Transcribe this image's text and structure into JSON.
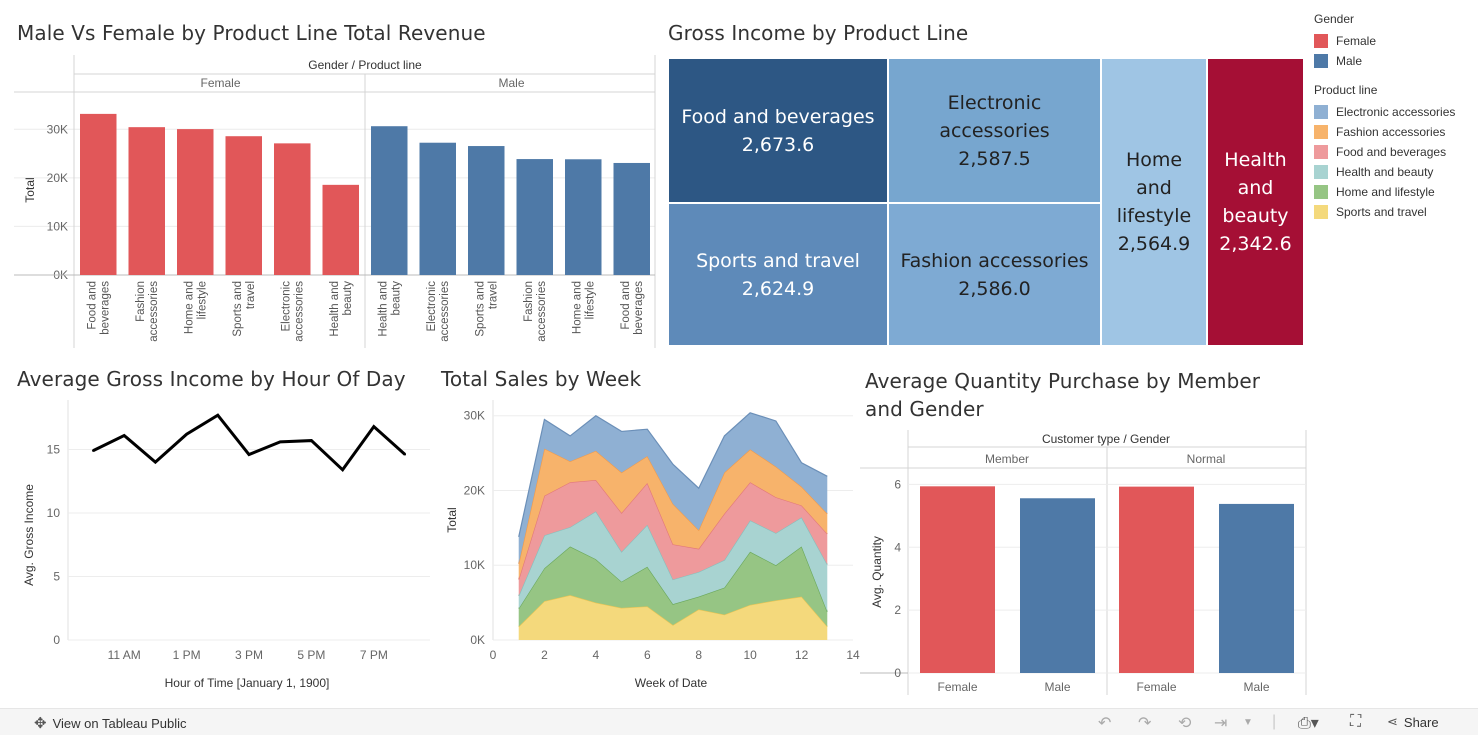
{
  "titles": {
    "bar_gender": "Male Vs Female by Product Line Total Revenue",
    "treemap": "Gross Income by Product Line",
    "line_hour": "Average Gross Income by Hour Of Day",
    "area_week": "Total Sales by Week",
    "bar_member": "Average Quantity Purchase by Member and Gender"
  },
  "colors": {
    "female": "#e15759",
    "male": "#4e79a7",
    "electronic": "#8fb0d3",
    "fashion": "#f7b36b",
    "food": "#ee9a9c",
    "health": "#a8d3d1",
    "home": "#96c584",
    "sports": "#f4d97c"
  },
  "legend": {
    "gender_title": "Gender",
    "gender_items": [
      {
        "label": "Female",
        "color": "#e15759"
      },
      {
        "label": "Male",
        "color": "#4e79a7"
      }
    ],
    "product_title": "Product line",
    "product_items": [
      {
        "label": "Electronic accessories",
        "color": "#8fb0d3"
      },
      {
        "label": "Fashion accessories",
        "color": "#f7b36b"
      },
      {
        "label": "Food and beverages",
        "color": "#ee9a9c"
      },
      {
        "label": "Health and beauty",
        "color": "#a8d3d1"
      },
      {
        "label": "Home and lifestyle",
        "color": "#96c584"
      },
      {
        "label": "Sports and travel",
        "color": "#f4d97c"
      }
    ]
  },
  "footer": {
    "view_label": "View on Tableau Public",
    "share_label": "Share"
  },
  "chart_data": [
    {
      "id": "bar_gender",
      "type": "bar",
      "header": "Gender / Product line",
      "ylabel": "Total",
      "ylim": [
        0,
        35000
      ],
      "yticks": [
        0,
        10000,
        20000,
        30000
      ],
      "ytick_labels": [
        "0K",
        "10K",
        "20K",
        "30K"
      ],
      "groups": [
        {
          "name": "Female",
          "categories": [
            "Food and beverages",
            "Fashion accessories",
            "Home and lifestyle",
            "Sports and travel",
            "Electronic accessories",
            "Health and beauty"
          ],
          "values": [
            33170,
            30437,
            30037,
            28575,
            27102,
            18561
          ]
        },
        {
          "name": "Male",
          "categories": [
            "Health and beauty",
            "Electronic accessories",
            "Sports and travel",
            "Fashion accessories",
            "Home and lifestyle",
            "Food and beverages"
          ],
          "values": [
            30633,
            27235,
            26549,
            23868,
            23825,
            23066
          ]
        }
      ]
    },
    {
      "id": "treemap",
      "type": "treemap",
      "cells": [
        {
          "label": "Food and beverages",
          "value": "2,673.6"
        },
        {
          "label": "Sports and travel",
          "value": "2,624.9"
        },
        {
          "label": "Electronic accessories",
          "value": "2,587.5"
        },
        {
          "label": "Fashion accessories",
          "value": "2,586.0"
        },
        {
          "label": "Home and lifestyle",
          "value": "2,564.9"
        },
        {
          "label": "Health and beauty",
          "value": "2,342.6"
        }
      ]
    },
    {
      "id": "line_hour",
      "type": "line",
      "xlabel": "Hour of Time [January 1, 1900]",
      "ylabel": "Avg. Gross Income",
      "x": [
        10,
        11,
        12,
        13,
        14,
        15,
        16,
        17,
        18,
        19,
        20
      ],
      "y": [
        14.9,
        16.1,
        14.0,
        16.2,
        17.7,
        14.6,
        15.6,
        15.7,
        13.4,
        16.8,
        14.6
      ],
      "xticks": [
        11,
        13,
        15,
        17,
        19
      ],
      "xtick_labels": [
        "11 AM",
        "1 PM",
        "3 PM",
        "5 PM",
        "7 PM"
      ],
      "yticks": [
        0,
        5,
        10,
        15
      ],
      "ylim": [
        0,
        18.5
      ],
      "xlim": [
        9.2,
        20.8
      ]
    },
    {
      "id": "area_week",
      "type": "area",
      "stacked": true,
      "xlabel": "Week of Date",
      "ylabel": "Total",
      "x": [
        1,
        2,
        3,
        4,
        5,
        6,
        7,
        8,
        9,
        10,
        11,
        12,
        13
      ],
      "xticks": [
        0,
        2,
        4,
        6,
        8,
        10,
        12,
        14
      ],
      "yticks": [
        0,
        10000,
        20000,
        30000
      ],
      "ytick_labels": [
        "0K",
        "10K",
        "20K",
        "30K"
      ],
      "xlim": [
        0,
        14
      ],
      "ylim": [
        0,
        30500
      ],
      "series": [
        {
          "name": "Sports and travel",
          "values": [
            1800,
            5200,
            6000,
            5000,
            4300,
            4500,
            2000,
            4100,
            3400,
            4700,
            5300,
            5800,
            1800
          ]
        },
        {
          "name": "Home and lifestyle",
          "values": [
            2400,
            4400,
            6500,
            5800,
            3500,
            5300,
            2800,
            1700,
            3600,
            7100,
            4700,
            6700,
            2000
          ]
        },
        {
          "name": "Health and beauty",
          "values": [
            1700,
            4400,
            2600,
            6400,
            4000,
            5600,
            3300,
            3300,
            3700,
            4200,
            4300,
            3900,
            6300
          ]
        },
        {
          "name": "Food and beverages",
          "values": [
            2200,
            5300,
            6000,
            4200,
            5200,
            5600,
            4700,
            3100,
            6200,
            5100,
            4800,
            1600,
            4100
          ]
        },
        {
          "name": "Fashion accessories",
          "values": [
            2100,
            6300,
            2800,
            3900,
            5400,
            3600,
            5400,
            2500,
            5500,
            4400,
            4100,
            2500,
            2700
          ]
        },
        {
          "name": "Electronic accessories",
          "values": [
            3600,
            3900,
            3400,
            4700,
            5500,
            3600,
            5300,
            5600,
            4900,
            4900,
            6100,
            3200,
            5000
          ]
        }
      ]
    },
    {
      "id": "bar_member",
      "type": "bar",
      "header": "Customer type / Gender",
      "ylabel": "Avg. Quantity",
      "ylim": [
        0,
        6.3
      ],
      "yticks": [
        0,
        2,
        4,
        6
      ],
      "groups": [
        {
          "name": "Member",
          "categories": [
            "Female",
            "Male"
          ],
          "values": [
            5.94,
            5.56
          ]
        },
        {
          "name": "Normal",
          "categories": [
            "Female",
            "Male"
          ],
          "values": [
            5.93,
            5.38
          ]
        }
      ]
    }
  ]
}
